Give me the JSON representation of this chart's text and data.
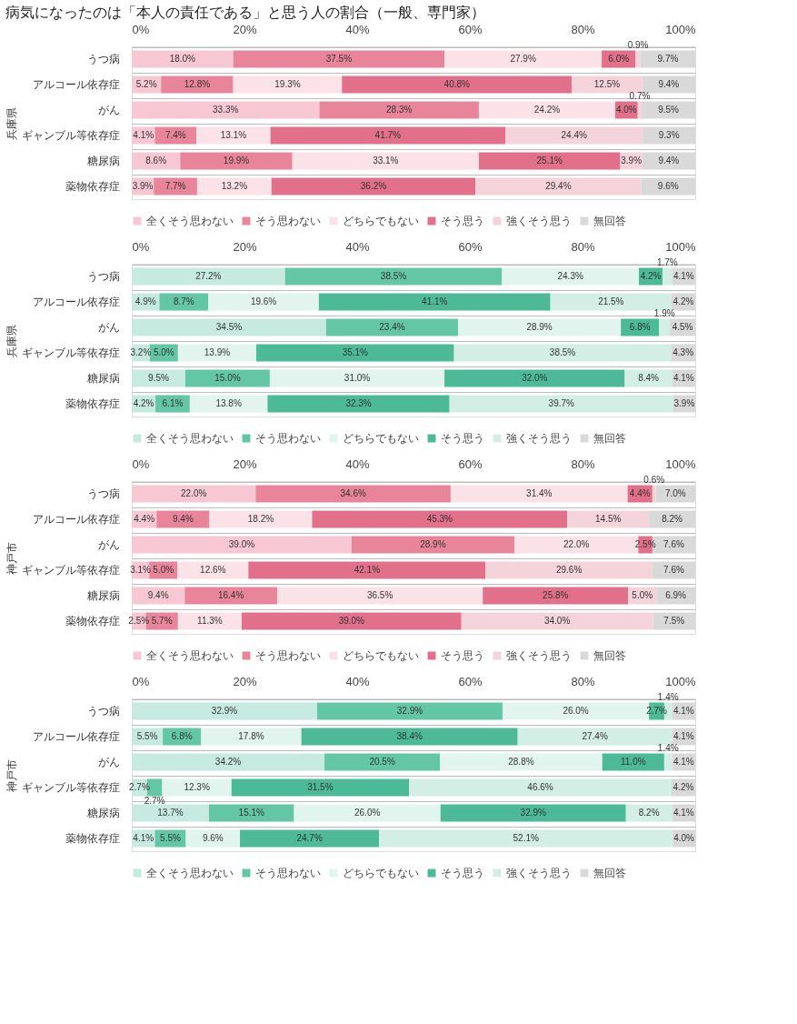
{
  "chart_data": [
    {
      "type": "bar",
      "title": "病気になったのは「本人の責任である」と思う人の割合（一般、専門家）",
      "orientation": "horizontal",
      "stacked": true,
      "ylabel": "兵庫県",
      "legend": "bottom",
      "xlim": [
        0,
        100
      ],
      "xticks": [
        {
          "value": 0,
          "label": "0%"
        },
        {
          "value": 20,
          "label": "20%"
        },
        {
          "value": 40,
          "label": "40%"
        },
        {
          "value": 60,
          "label": "60%"
        },
        {
          "value": 80,
          "label": "80%"
        },
        {
          "value": 100,
          "label": "100%"
        }
      ],
      "categories": [
        "うつ病",
        "アルコール依存症",
        "がん",
        "ギャンブル等依存症",
        "糖尿病",
        "薬物依存症"
      ],
      "series": [
        {
          "name": "全くそう思わない",
          "color": "#f7c8d3",
          "values": [
            18.0,
            5.2,
            33.3,
            4.1,
            8.6,
            3.9
          ],
          "value_labels": [
            "18.0%",
            "5.2%",
            "33.3%",
            "4.1%",
            "8.6%",
            "3.9%"
          ]
        },
        {
          "name": "そう思わない",
          "color": "#e9859a",
          "values": [
            37.5,
            12.8,
            28.3,
            7.4,
            19.9,
            7.7
          ],
          "value_labels": [
            "37.5%",
            "12.8%",
            "28.3%",
            "7.4%",
            "19.9%",
            "7.7%"
          ]
        },
        {
          "name": "どちらでもない",
          "color": "#fae2e8",
          "values": [
            27.9,
            19.3,
            24.2,
            13.1,
            33.1,
            13.2
          ],
          "value_labels": [
            "27.9%",
            "19.3%",
            "24.2%",
            "13.1%",
            "33.1%",
            "13.2%"
          ]
        },
        {
          "name": "そう思う",
          "color": "#e2708a",
          "values": [
            6.0,
            40.8,
            4.0,
            41.7,
            25.1,
            36.2
          ],
          "value_labels": [
            "6.0%",
            "40.8%",
            "4.0%",
            "41.7%",
            "25.1%",
            "36.2%"
          ]
        },
        {
          "name": "強くそう思う",
          "color": "#f5d3db",
          "values": [
            0.9,
            12.5,
            0.7,
            24.4,
            3.9,
            29.4
          ],
          "value_labels": [
            "0.9%",
            "12.5%",
            "0.7%",
            "24.4%",
            "3.9%",
            "29.4%"
          ]
        },
        {
          "name": "無回答",
          "color": "#d9d9d9",
          "values": [
            9.7,
            9.4,
            9.5,
            9.3,
            9.4,
            9.6
          ],
          "value_labels": [
            "9.7%",
            "9.4%",
            "9.5%",
            "9.3%",
            "9.4%",
            "9.6%"
          ]
        }
      ]
    },
    {
      "type": "bar",
      "orientation": "horizontal",
      "stacked": true,
      "ylabel": "兵庫県",
      "legend": "bottom",
      "xlim": [
        0,
        100
      ],
      "xticks": [
        {
          "value": 0,
          "label": "0%"
        },
        {
          "value": 20,
          "label": "20%"
        },
        {
          "value": 40,
          "label": "40%"
        },
        {
          "value": 60,
          "label": "60%"
        },
        {
          "value": 80,
          "label": "80%"
        },
        {
          "value": 100,
          "label": "100%"
        }
      ],
      "categories": [
        "うつ病",
        "アルコール依存症",
        "がん",
        "ギャンブル等依存症",
        "糖尿病",
        "薬物依存症"
      ],
      "series": [
        {
          "name": "全くそう思わない",
          "color": "#c6eadf",
          "values": [
            27.2,
            4.9,
            34.5,
            3.2,
            9.5,
            4.2
          ],
          "value_labels": [
            "27.2%",
            "4.9%",
            "34.5%",
            "3.2%",
            "9.5%",
            "4.2%"
          ]
        },
        {
          "name": "そう思わない",
          "color": "#63c7a6",
          "values": [
            38.5,
            8.7,
            23.4,
            5.0,
            15.0,
            6.1
          ],
          "value_labels": [
            "38.5%",
            "8.7%",
            "23.4%",
            "5.0%",
            "15.0%",
            "6.1%"
          ]
        },
        {
          "name": "どちらでもない",
          "color": "#e2f4ee",
          "values": [
            24.3,
            19.6,
            28.9,
            13.9,
            31.0,
            13.8
          ],
          "value_labels": [
            "24.3%",
            "19.6%",
            "28.9%",
            "13.9%",
            "31.0%",
            "13.8%"
          ]
        },
        {
          "name": "そう思う",
          "color": "#4cba96",
          "values": [
            4.2,
            41.1,
            6.8,
            35.1,
            32.0,
            32.3
          ],
          "value_labels": [
            "4.2%",
            "41.1%",
            "6.8%",
            "35.1%",
            "32.0%",
            "32.3%"
          ]
        },
        {
          "name": "強くそう思う",
          "color": "#d2eee5",
          "values": [
            1.7,
            21.5,
            1.9,
            38.5,
            8.4,
            39.7
          ],
          "value_labels": [
            "1.7%",
            "21.5%",
            "1.9%",
            "38.5%",
            "8.4%",
            "39.7%"
          ]
        },
        {
          "name": "無回答",
          "color": "#d9d9d9",
          "values": [
            4.1,
            4.2,
            4.5,
            4.3,
            4.1,
            3.9
          ],
          "value_labels": [
            "4.1%",
            "4.2%",
            "4.5%",
            "4.3%",
            "4.1%",
            "3.9%"
          ]
        }
      ]
    },
    {
      "type": "bar",
      "orientation": "horizontal",
      "stacked": true,
      "ylabel": "神戸市",
      "legend": "bottom",
      "xlim": [
        0,
        100
      ],
      "xticks": [
        {
          "value": 0,
          "label": "0%"
        },
        {
          "value": 20,
          "label": "20%"
        },
        {
          "value": 40,
          "label": "40%"
        },
        {
          "value": 60,
          "label": "60%"
        },
        {
          "value": 80,
          "label": "80%"
        },
        {
          "value": 100,
          "label": "100%"
        }
      ],
      "categories": [
        "うつ病",
        "アルコール依存症",
        "がん",
        "ギャンブル等依存症",
        "糖尿病",
        "薬物依存症"
      ],
      "series": [
        {
          "name": "全くそう思わない",
          "color": "#f7c8d3",
          "values": [
            22.0,
            4.4,
            39.0,
            3.1,
            9.4,
            2.5
          ],
          "value_labels": [
            "22.0%",
            "4.4%",
            "39.0%",
            "3.1%",
            "9.4%",
            "2.5%"
          ]
        },
        {
          "name": "そう思わない",
          "color": "#e9859a",
          "values": [
            34.6,
            9.4,
            28.9,
            5.0,
            16.4,
            5.7
          ],
          "value_labels": [
            "34.6%",
            "9.4%",
            "28.9%",
            "5.0%",
            "16.4%",
            "5.7%"
          ]
        },
        {
          "name": "どちらでもない",
          "color": "#fae2e8",
          "values": [
            31.4,
            18.2,
            22.0,
            12.6,
            36.5,
            11.3
          ],
          "value_labels": [
            "31.4%",
            "18.2%",
            "22.0%",
            "12.6%",
            "36.5%",
            "11.3%"
          ]
        },
        {
          "name": "そう思う",
          "color": "#e2708a",
          "values": [
            4.4,
            45.3,
            2.5,
            42.1,
            25.8,
            39.0
          ],
          "value_labels": [
            "4.4%",
            "45.3%",
            "2.5%",
            "42.1%",
            "25.8%",
            "39.0%"
          ]
        },
        {
          "name": "強くそう思う",
          "color": "#f5d3db",
          "values": [
            0.6,
            14.5,
            null,
            29.6,
            5.0,
            34.0
          ],
          "value_labels": [
            "0.6%",
            "14.5%",
            null,
            "29.6%",
            "5.0%",
            "34.0%"
          ]
        },
        {
          "name": "無回答",
          "color": "#d9d9d9",
          "values": [
            7.0,
            8.2,
            7.6,
            7.6,
            6.9,
            7.5
          ],
          "value_labels": [
            "7.0%",
            "8.2%",
            "7.6%",
            "7.6%",
            "6.9%",
            "7.5%"
          ]
        }
      ]
    },
    {
      "type": "bar",
      "orientation": "horizontal",
      "stacked": true,
      "ylabel": "神戸市",
      "legend": "bottom",
      "xlim": [
        0,
        100
      ],
      "xticks": [
        {
          "value": 0,
          "label": "0%"
        },
        {
          "value": 20,
          "label": "20%"
        },
        {
          "value": 40,
          "label": "40%"
        },
        {
          "value": 60,
          "label": "60%"
        },
        {
          "value": 80,
          "label": "80%"
        },
        {
          "value": 100,
          "label": "100%"
        }
      ],
      "categories": [
        "うつ病",
        "アルコール依存症",
        "がん",
        "ギャンブル等依存症",
        "糖尿病",
        "薬物依存症"
      ],
      "series": [
        {
          "name": "全くそう思わない",
          "color": "#c6eadf",
          "values": [
            32.9,
            5.5,
            34.2,
            2.7,
            13.7,
            4.1
          ],
          "value_labels": [
            "32.9%",
            "5.5%",
            "34.2%",
            "2.7%",
            "13.7%",
            "4.1%"
          ]
        },
        {
          "name": "そう思わない",
          "color": "#63c7a6",
          "values": [
            32.9,
            6.8,
            20.5,
            2.7,
            15.1,
            5.5
          ],
          "value_labels": [
            "32.9%",
            "6.8%",
            "20.5%",
            "2.7%",
            "15.1%",
            "5.5%"
          ]
        },
        {
          "name": "どちらでもない",
          "color": "#e2f4ee",
          "values": [
            26.0,
            17.8,
            28.8,
            12.3,
            26.0,
            9.6
          ],
          "value_labels": [
            "26.0%",
            "17.8%",
            "28.8%",
            "12.3%",
            "26.0%",
            "9.6%"
          ]
        },
        {
          "name": "そう思う",
          "color": "#4cba96",
          "values": [
            2.7,
            38.4,
            11.0,
            31.5,
            32.9,
            24.7
          ],
          "value_labels": [
            "2.7%",
            "38.4%",
            "11.0%",
            "31.5%",
            "32.9%",
            "24.7%"
          ]
        },
        {
          "name": "強くそう思う",
          "color": "#d2eee5",
          "values": [
            1.4,
            27.4,
            1.4,
            46.6,
            8.2,
            52.1
          ],
          "value_labels": [
            "1.4%",
            "27.4%",
            "1.4%",
            "46.6%",
            "8.2%",
            "52.1%"
          ]
        },
        {
          "name": "無回答",
          "color": "#d9d9d9",
          "values": [
            4.1,
            4.1,
            4.1,
            4.2,
            4.1,
            4.0
          ],
          "value_labels": [
            "4.1%",
            "4.1%",
            "4.1%",
            "4.2%",
            "4.1%",
            "4.0%"
          ]
        }
      ]
    }
  ]
}
